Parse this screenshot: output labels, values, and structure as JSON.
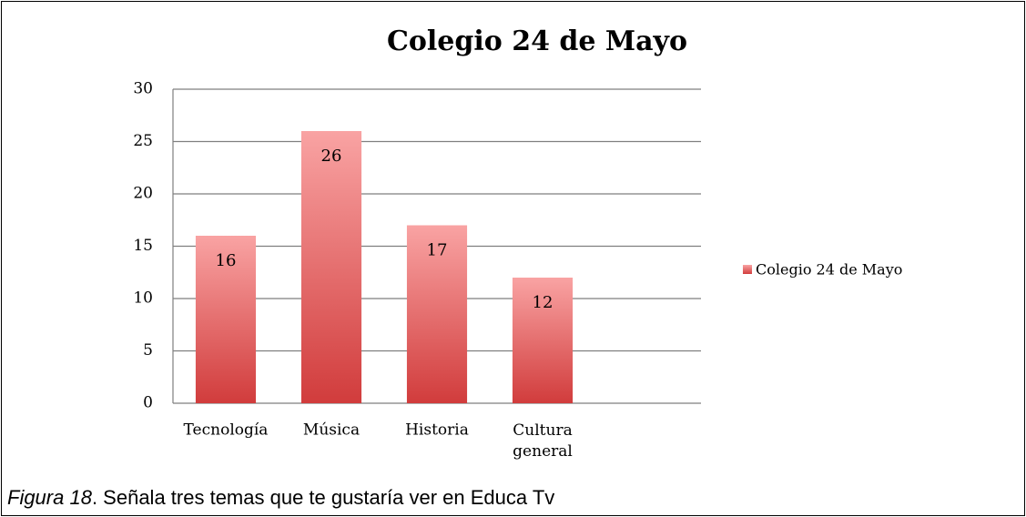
{
  "chart_data": {
    "type": "bar",
    "title": "Colegio 24 de Mayo",
    "categories": [
      "Tecnología",
      "Música",
      "Historia",
      "Cultura general",
      null
    ],
    "series": [
      {
        "name": "Colegio 24 de Mayo",
        "color": "#e05a5a",
        "values": [
          16,
          26,
          17,
          12,
          null
        ]
      }
    ],
    "ylim": [
      0,
      30
    ],
    "yticks": [
      0,
      5,
      10,
      15,
      20,
      25,
      30
    ],
    "grid": true,
    "legend": "right"
  },
  "caption": {
    "label": "Figura 18",
    "text": ". Señala tres temas que te gustaría ver en Educa Tv"
  }
}
